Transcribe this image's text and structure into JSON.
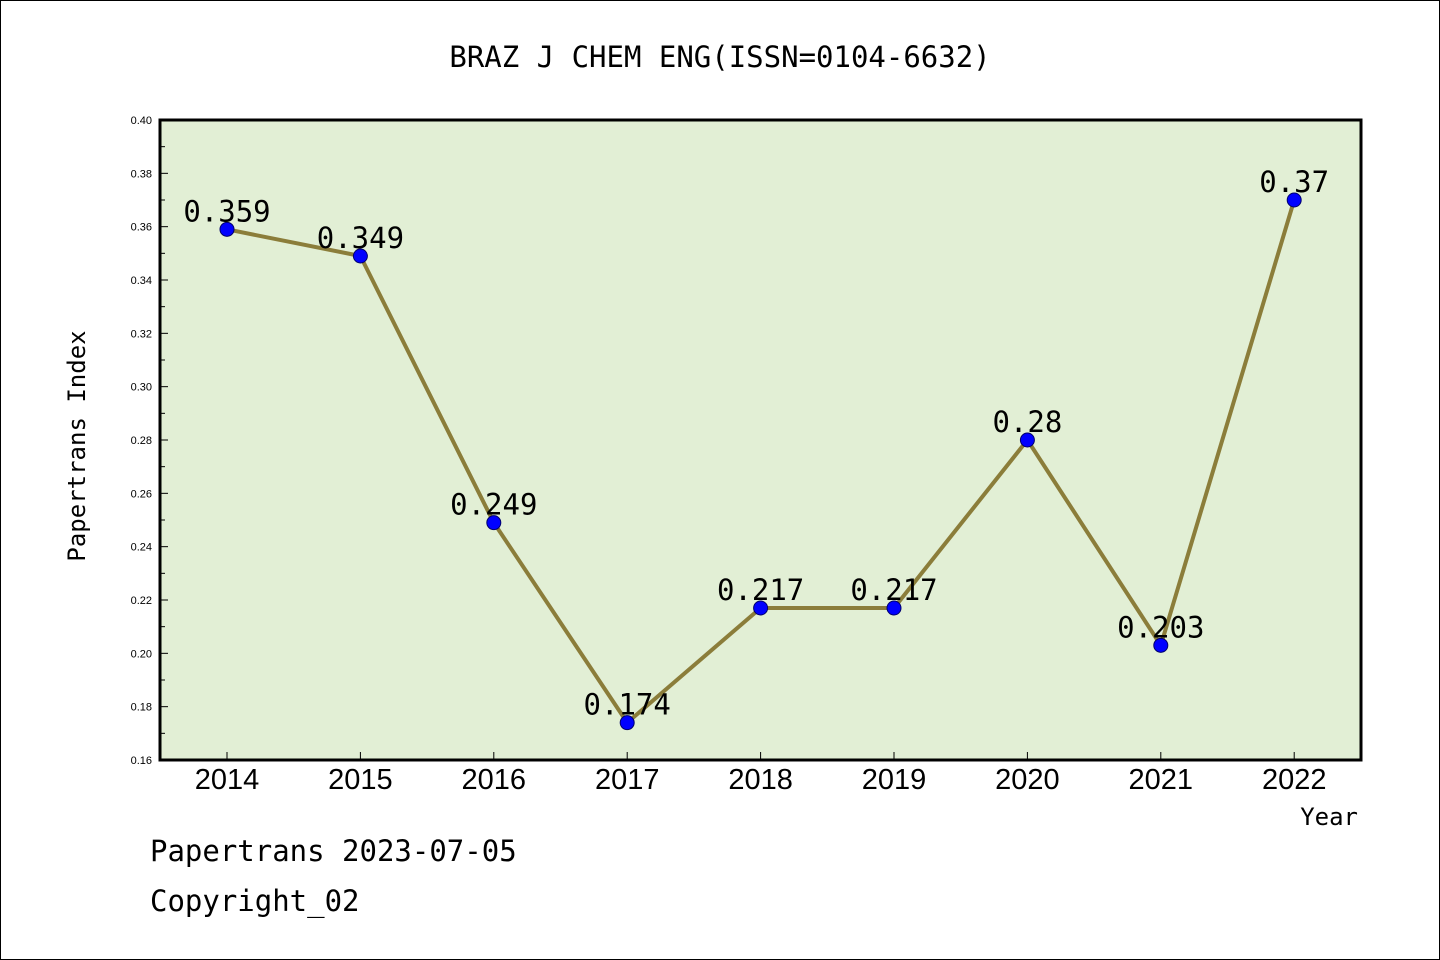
{
  "chart_data": {
    "type": "line",
    "title": "BRAZ J CHEM ENG(ISSN=0104-6632)",
    "xlabel": "Year",
    "ylabel": "Papertrans Index",
    "categories": [
      "2014",
      "2015",
      "2016",
      "2017",
      "2018",
      "2019",
      "2020",
      "2021",
      "2022"
    ],
    "series": [
      {
        "values": [
          0.359,
          0.349,
          0.249,
          0.174,
          0.217,
          0.217,
          0.28,
          0.203,
          0.37
        ]
      }
    ],
    "data_labels": [
      "0.359",
      "0.349",
      "0.249",
      "0.174",
      "0.217",
      "0.217",
      "0.28",
      "0.203",
      "0.37"
    ],
    "ylim": [
      0.16,
      0.4
    ],
    "yticks": [
      "0.16",
      "0.18",
      "0.20",
      "0.22",
      "0.24",
      "0.26",
      "0.28",
      "0.30",
      "0.32",
      "0.34",
      "0.36",
      "0.38",
      "0.40"
    ],
    "grid": false,
    "colors": {
      "plot_bg": "#e2efd5",
      "line": "#8b7d3a",
      "marker": "#0000ff"
    }
  },
  "footer": {
    "line1": "Papertrans 2023-07-05",
    "line2": "Copyright_02"
  }
}
